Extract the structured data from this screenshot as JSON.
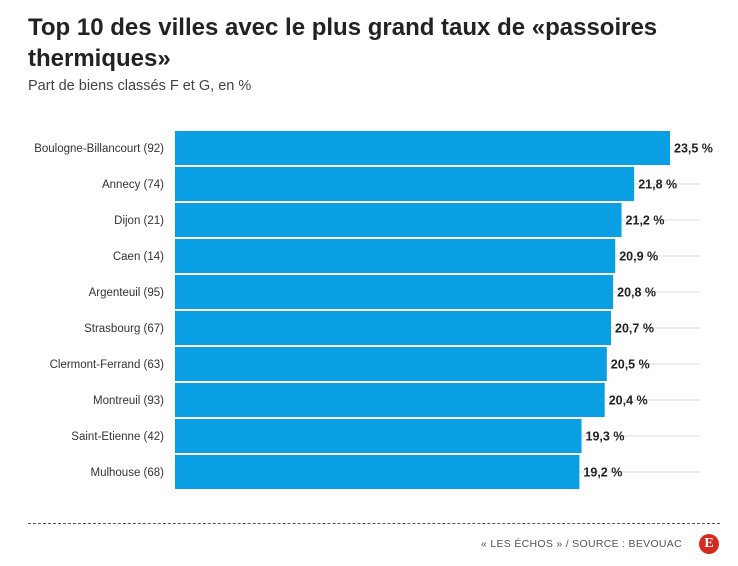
{
  "header": {
    "title": "Top 10 des villes avec le plus grand taux de «passoires thermiques»",
    "subtitle": "Part de biens classés F et G, en %"
  },
  "footer": {
    "source": "« LES ÉCHOS » / SOURCE : BEVOUAC",
    "logo_letter": "E",
    "logo_color": "#d52b1e"
  },
  "colors": {
    "bar": "#0a9fe3",
    "grid": "#dddddd"
  },
  "chart_data": {
    "type": "bar",
    "orientation": "horizontal",
    "title": "Top 10 des villes avec le plus grand taux de «passoires thermiques»",
    "subtitle": "Part de biens classés F et G, en %",
    "categories": [
      "Boulogne-Billancourt (92)",
      "Annecy (74)",
      "Dijon (21)",
      "Caen (14)",
      "Argenteuil (95)",
      "Strasbourg (67)",
      "Clermont-Ferrand (63)",
      "Montreuil (93)",
      "Saint-Etienne (42)",
      "Mulhouse (68)"
    ],
    "values": [
      23.5,
      21.8,
      21.2,
      20.9,
      20.8,
      20.7,
      20.5,
      20.4,
      19.3,
      19.2
    ],
    "value_labels": [
      "23,5 %",
      "21,8 %",
      "21,2 %",
      "20,9 %",
      "20,8 %",
      "20,7 %",
      "20,5 %",
      "20,4 %",
      "19,3 %",
      "19,2 %"
    ],
    "xlim": [
      0,
      23.5
    ],
    "grid": true,
    "legend": "none"
  }
}
